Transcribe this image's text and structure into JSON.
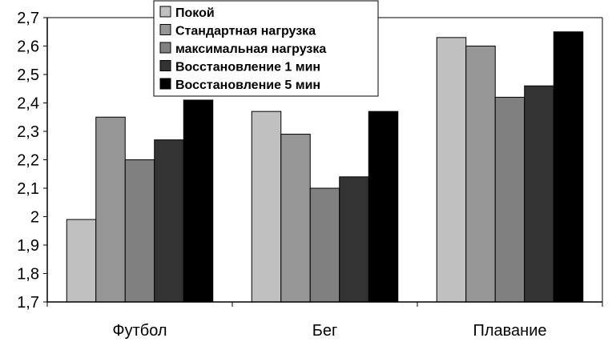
{
  "chart_data": {
    "type": "bar",
    "categories": [
      "Футбол",
      "Бег",
      "Плавание"
    ],
    "series": [
      {
        "name": "Покой",
        "color": "#c0c0c0",
        "values": [
          1.99,
          2.37,
          2.63
        ]
      },
      {
        "name": "Стандартная нагрузка",
        "color": "#969696",
        "values": [
          2.35,
          2.29,
          2.6
        ]
      },
      {
        "name": "максимальная нагрузка",
        "color": "#808080",
        "values": [
          2.2,
          2.1,
          2.42
        ]
      },
      {
        "name": "Восстановление 1 мин",
        "color": "#333333",
        "values": [
          2.27,
          2.14,
          2.46
        ]
      },
      {
        "name": "Восстановление 5 мин",
        "color": "#000000",
        "values": [
          2.41,
          2.37,
          2.65
        ]
      }
    ],
    "ylim": [
      1.7,
      2.7
    ],
    "yticks": [
      "1,7",
      "1,8",
      "1,9",
      "2",
      "2,1",
      "2,2",
      "2,3",
      "2,4",
      "2,5",
      "2,6",
      "2,7"
    ],
    "grid": false,
    "legend": "top-center"
  }
}
